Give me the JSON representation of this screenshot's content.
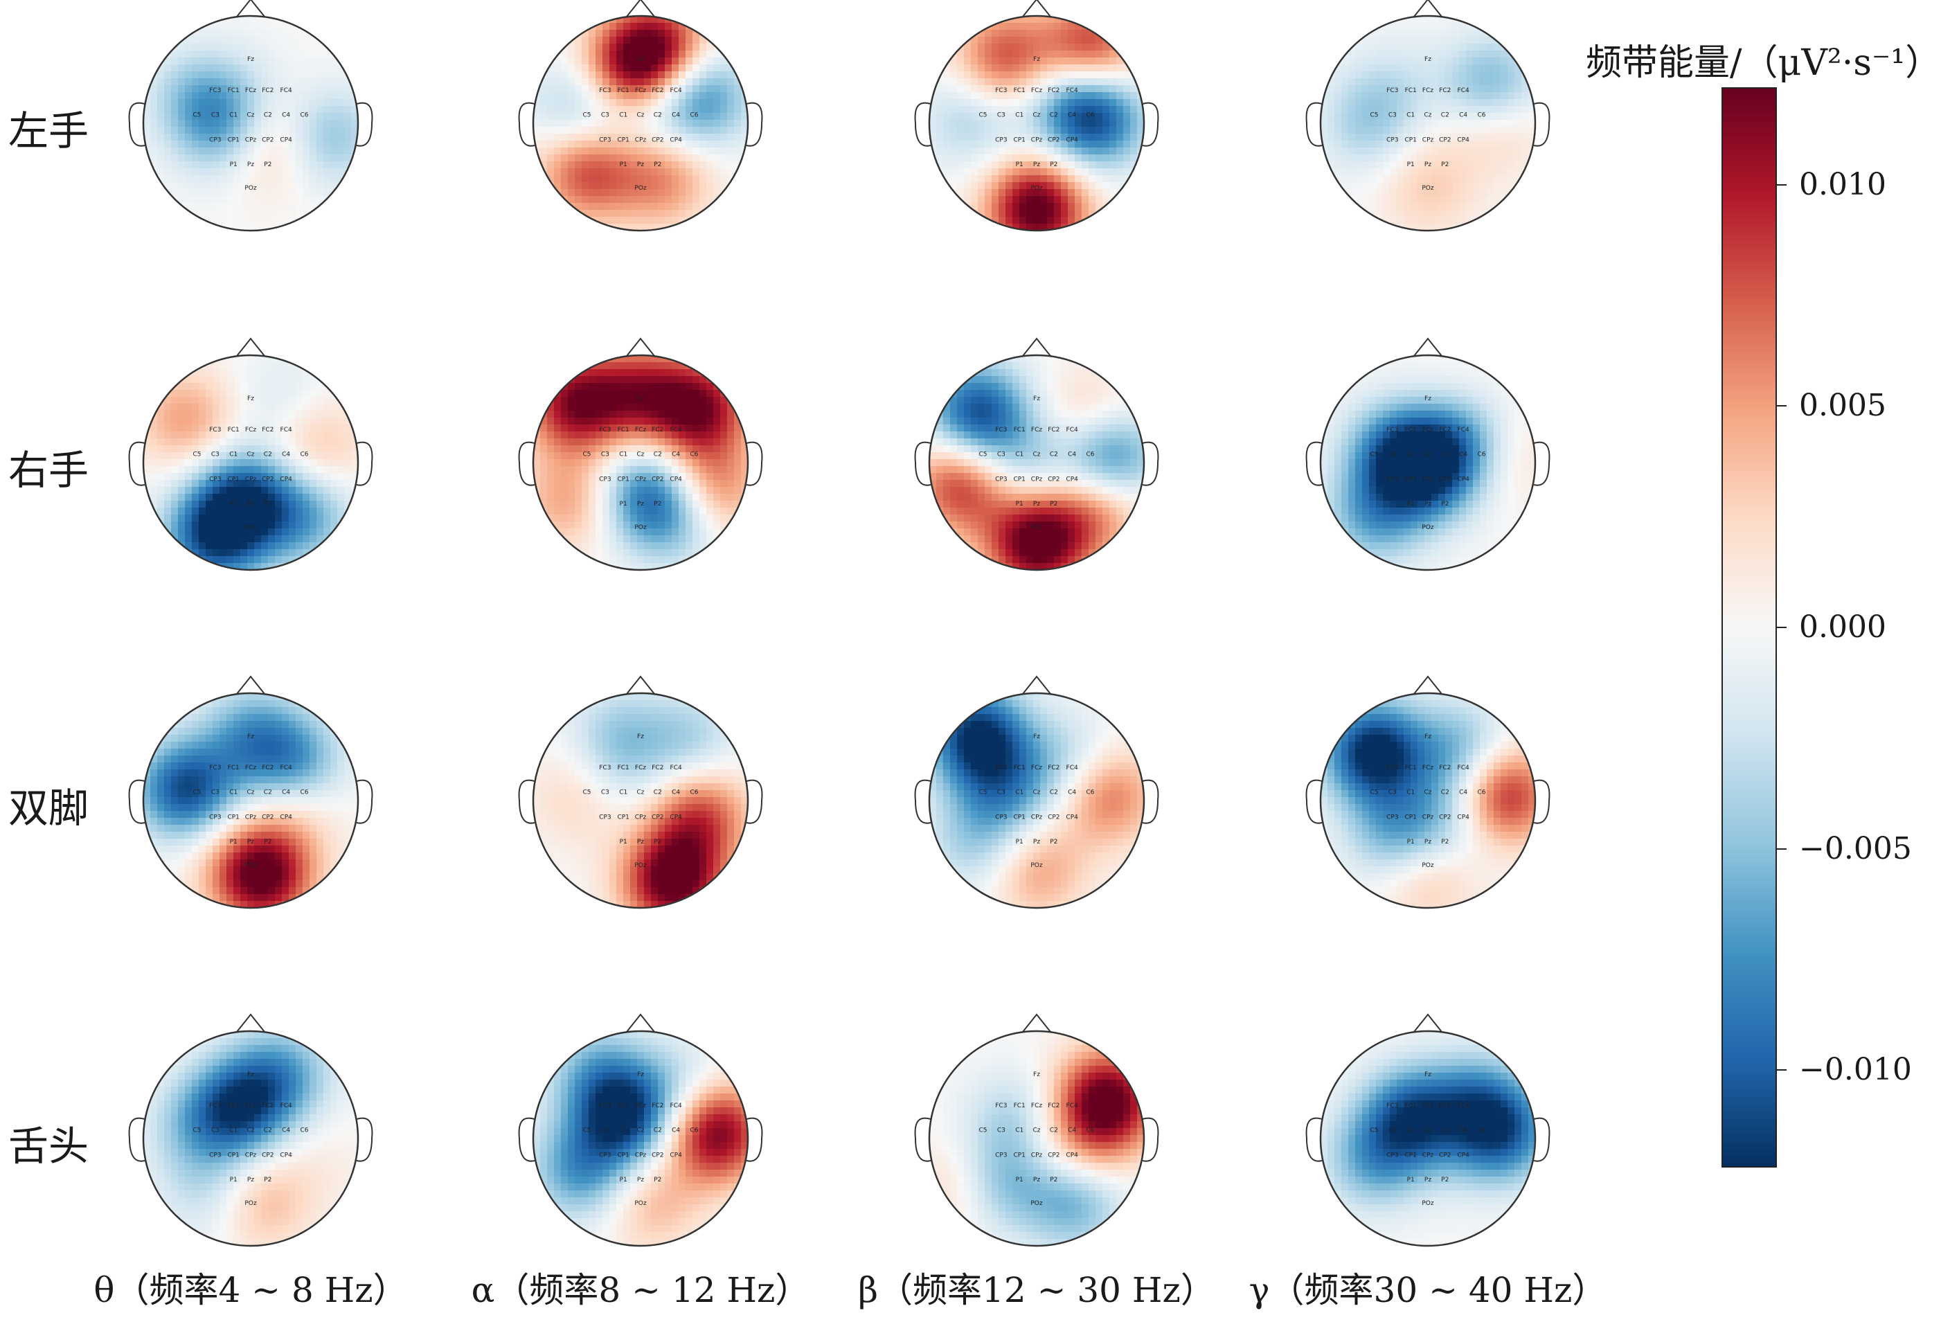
{
  "rows": [
    "左手",
    "右手",
    "双脚",
    "舌头"
  ],
  "columns": [
    "θ（频率4 ~ 8 Hz）",
    "α（频率8 ~ 12 Hz）",
    "β（频率12 ~ 30 Hz）",
    "γ（频率30 ~ 40 Hz）"
  ],
  "colorbar": {
    "title": "频带能量/（μV²·s⁻¹）",
    "ticks": [
      "0.010",
      "0.005",
      "0.000",
      "−0.005",
      "−0.010"
    ],
    "tick_values": [
      0.01,
      0.005,
      0.0,
      -0.005,
      -0.01
    ],
    "range": [
      -0.0122,
      0.0122
    ],
    "colormap": [
      "#053061",
      "#2166ac",
      "#4393c3",
      "#92c5de",
      "#d1e5f0",
      "#f7f7f7",
      "#fddbc7",
      "#f4a582",
      "#d6604d",
      "#b2182b",
      "#67001f"
    ]
  },
  "electrodes": [
    "Fz",
    "FC3",
    "FC1",
    "FCz",
    "FC2",
    "FC4",
    "C5",
    "C3",
    "C1",
    "Cz",
    "C2",
    "C4",
    "C6",
    "CP3",
    "CP1",
    "CPz",
    "CP2",
    "CP4",
    "P1",
    "Pz",
    "P2",
    "POz"
  ],
  "topomaps": [
    [
      {
        "blobs": [
          [
            0.55,
            0.05,
            0.0015
          ],
          [
            0.15,
            -0.2,
            0.004
          ],
          [
            -0.25,
            -0.05,
            -0.006
          ],
          [
            -0.5,
            0.25,
            -0.004
          ],
          [
            0.0,
            0.35,
            -0.001
          ],
          [
            0.7,
            -0.1,
            -0.006
          ]
        ]
      },
      {
        "blobs": [
          [
            -0.1,
            0.5,
            0.01
          ],
          [
            0.2,
            0.7,
            0.009
          ],
          [
            -0.5,
            -0.45,
            0.008
          ],
          [
            0.2,
            -0.5,
            0.006
          ],
          [
            -0.55,
            0.15,
            -0.005
          ],
          [
            0.55,
            0.25,
            -0.008
          ],
          [
            0.1,
            0.1,
            -0.003
          ]
        ]
      },
      {
        "blobs": [
          [
            0.5,
            0.7,
            0.009
          ],
          [
            -0.3,
            0.6,
            0.008
          ],
          [
            0.0,
            -0.8,
            0.013
          ],
          [
            0.55,
            0.05,
            -0.01
          ],
          [
            -0.6,
            0.05,
            -0.004
          ],
          [
            0.25,
            0.2,
            -0.004
          ]
        ]
      },
      {
        "blobs": [
          [
            0.65,
            0.05,
            0.005
          ],
          [
            0.0,
            -0.6,
            0.003
          ],
          [
            0.6,
            0.3,
            -0.008
          ],
          [
            -0.55,
            0.0,
            -0.004
          ],
          [
            -0.3,
            0.35,
            -0.002
          ],
          [
            0.0,
            0.0,
            0.0005
          ]
        ]
      }
    ],
    [
      {
        "blobs": [
          [
            -0.6,
            0.4,
            0.005
          ],
          [
            0.6,
            0.15,
            0.004
          ],
          [
            -0.05,
            -0.35,
            -0.01
          ],
          [
            -0.35,
            -0.7,
            -0.01
          ],
          [
            0.5,
            -0.5,
            -0.006
          ],
          [
            0.3,
            0.55,
            -0.002
          ]
        ]
      },
      {
        "blobs": [
          [
            -0.6,
            0.55,
            0.011
          ],
          [
            0.55,
            0.5,
            0.011
          ],
          [
            0.0,
            0.65,
            0.008
          ],
          [
            -0.65,
            -0.35,
            0.005
          ],
          [
            0.65,
            -0.25,
            0.007
          ],
          [
            0.05,
            -0.3,
            -0.008
          ],
          [
            0.35,
            -0.5,
            -0.005
          ]
        ]
      },
      {
        "blobs": [
          [
            -0.55,
            0.45,
            -0.011
          ],
          [
            0.65,
            0.05,
            -0.011
          ],
          [
            -0.1,
            0.0,
            -0.004
          ],
          [
            0.0,
            -0.75,
            0.013
          ],
          [
            0.5,
            0.35,
            0.005
          ],
          [
            -0.7,
            -0.2,
            0.009
          ],
          [
            0.55,
            -0.4,
            0.007
          ]
        ]
      },
      {
        "blobs": [
          [
            -0.3,
            0.1,
            -0.008
          ],
          [
            0.0,
            -0.1,
            -0.009
          ],
          [
            0.3,
            0.2,
            -0.006
          ],
          [
            -0.5,
            -0.5,
            -0.006
          ],
          [
            0.75,
            0.05,
            0.002
          ],
          [
            0.3,
            0.65,
            0.0005
          ]
        ]
      }
    ],
    [
      {
        "blobs": [
          [
            -0.6,
            0.1,
            -0.011
          ],
          [
            0.0,
            0.6,
            -0.006
          ],
          [
            0.4,
            0.35,
            -0.007
          ],
          [
            0.1,
            -0.7,
            0.013
          ],
          [
            0.4,
            -0.1,
            0.003
          ],
          [
            -0.3,
            -0.45,
            0.001
          ]
        ]
      },
      {
        "blobs": [
          [
            0.3,
            -0.75,
            0.013
          ],
          [
            0.55,
            -0.15,
            0.008
          ],
          [
            -0.55,
            0.05,
            0.003
          ],
          [
            -0.2,
            0.6,
            -0.004
          ],
          [
            0.45,
            0.55,
            -0.004
          ],
          [
            -0.2,
            0.2,
            -0.002
          ]
        ]
      },
      {
        "blobs": [
          [
            -0.55,
            0.6,
            -0.012
          ],
          [
            -0.3,
            0.1,
            -0.006
          ],
          [
            0.3,
            0.35,
            -0.004
          ],
          [
            0.65,
            0.05,
            0.007
          ],
          [
            0.0,
            -0.65,
            0.005
          ],
          [
            -0.55,
            -0.4,
            -0.004
          ]
        ]
      },
      {
        "blobs": [
          [
            -0.5,
            0.45,
            -0.013
          ],
          [
            0.3,
            0.45,
            -0.006
          ],
          [
            0.7,
            0.05,
            0.01
          ],
          [
            0.0,
            -0.7,
            0.004
          ],
          [
            -0.3,
            -0.3,
            -0.006
          ],
          [
            0.2,
            -0.2,
            -0.004
          ]
        ]
      }
    ],
    [
      {
        "blobs": [
          [
            -0.1,
            0.3,
            -0.01
          ],
          [
            0.3,
            0.6,
            -0.006
          ],
          [
            -0.5,
            0.1,
            -0.004
          ],
          [
            0.1,
            -0.6,
            0.004
          ],
          [
            0.6,
            -0.2,
            0.001
          ],
          [
            -0.4,
            -0.5,
            -0.003
          ]
        ]
      },
      {
        "blobs": [
          [
            -0.15,
            0.2,
            -0.011
          ],
          [
            0.7,
            0.05,
            0.012
          ],
          [
            0.35,
            0.5,
            -0.003
          ],
          [
            0.1,
            -0.6,
            0.004
          ],
          [
            -0.55,
            -0.3,
            -0.007
          ],
          [
            -0.4,
            0.6,
            -0.005
          ]
        ]
      },
      {
        "blobs": [
          [
            0.65,
            0.35,
            0.013
          ],
          [
            0.45,
            -0.15,
            0.004
          ],
          [
            -0.3,
            -0.4,
            -0.006
          ],
          [
            0.35,
            -0.55,
            -0.007
          ],
          [
            -0.2,
            0.15,
            -0.004
          ],
          [
            -0.7,
            -0.45,
            0.003
          ],
          [
            0.0,
            -0.2,
            0.002
          ]
        ]
      },
      {
        "blobs": [
          [
            -0.15,
            0.2,
            -0.01
          ],
          [
            0.45,
            0.35,
            -0.006
          ],
          [
            0.7,
            0.05,
            -0.009
          ],
          [
            -0.5,
            -0.2,
            -0.006
          ],
          [
            0.0,
            -0.6,
            0.0
          ],
          [
            0.3,
            -0.2,
            -0.001
          ]
        ]
      }
    ]
  ]
}
